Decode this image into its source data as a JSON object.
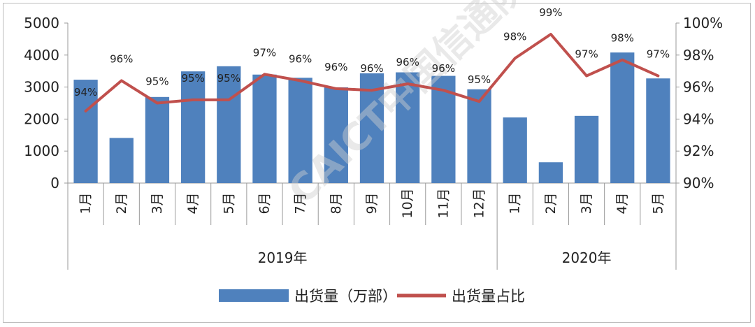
{
  "chart_data": {
    "type": "bar+line",
    "categories": [
      "1月",
      "2月",
      "3月",
      "4月",
      "5月",
      "6月",
      "7月",
      "8月",
      "9月",
      "10月",
      "11月",
      "12月",
      "1月",
      "2月",
      "3月",
      "4月",
      "5月"
    ],
    "groups": [
      {
        "label": "2019年",
        "count": 12
      },
      {
        "label": "2020年",
        "count": 5
      }
    ],
    "series": [
      {
        "name": "出货量（万部）",
        "type": "bar",
        "axis": "left",
        "color": "#4f81bd",
        "values": [
          3230,
          1410,
          2690,
          3490,
          3650,
          3390,
          3290,
          2990,
          3430,
          3460,
          3350,
          2930,
          2050,
          650,
          2100,
          4080,
          3270
        ]
      },
      {
        "name": "出货量占比",
        "type": "line",
        "axis": "right",
        "color": "#c0504d",
        "values": [
          94.5,
          96.4,
          95.0,
          95.2,
          95.2,
          96.8,
          96.4,
          95.9,
          95.8,
          96.2,
          95.8,
          95.1,
          97.8,
          99.3,
          96.7,
          97.7,
          96.7
        ],
        "labels": [
          "94%",
          "96%",
          "95%",
          "95%",
          "95%",
          "97%",
          "96%",
          "96%",
          "96%",
          "96%",
          "96%",
          "95%",
          "98%",
          "99%",
          "97%",
          "98%",
          "97%"
        ]
      }
    ],
    "y_left": {
      "min": 0,
      "max": 5000,
      "ticks": [
        "0",
        "1000",
        "2000",
        "3000",
        "4000",
        "5000"
      ]
    },
    "y_right": {
      "min": 90,
      "max": 100,
      "ticks": [
        "90%",
        "92%",
        "94%",
        "96%",
        "98%",
        "100%"
      ]
    },
    "legend": {
      "position": "bottom"
    },
    "grid": false,
    "watermark": "CAICT中国信通院"
  }
}
